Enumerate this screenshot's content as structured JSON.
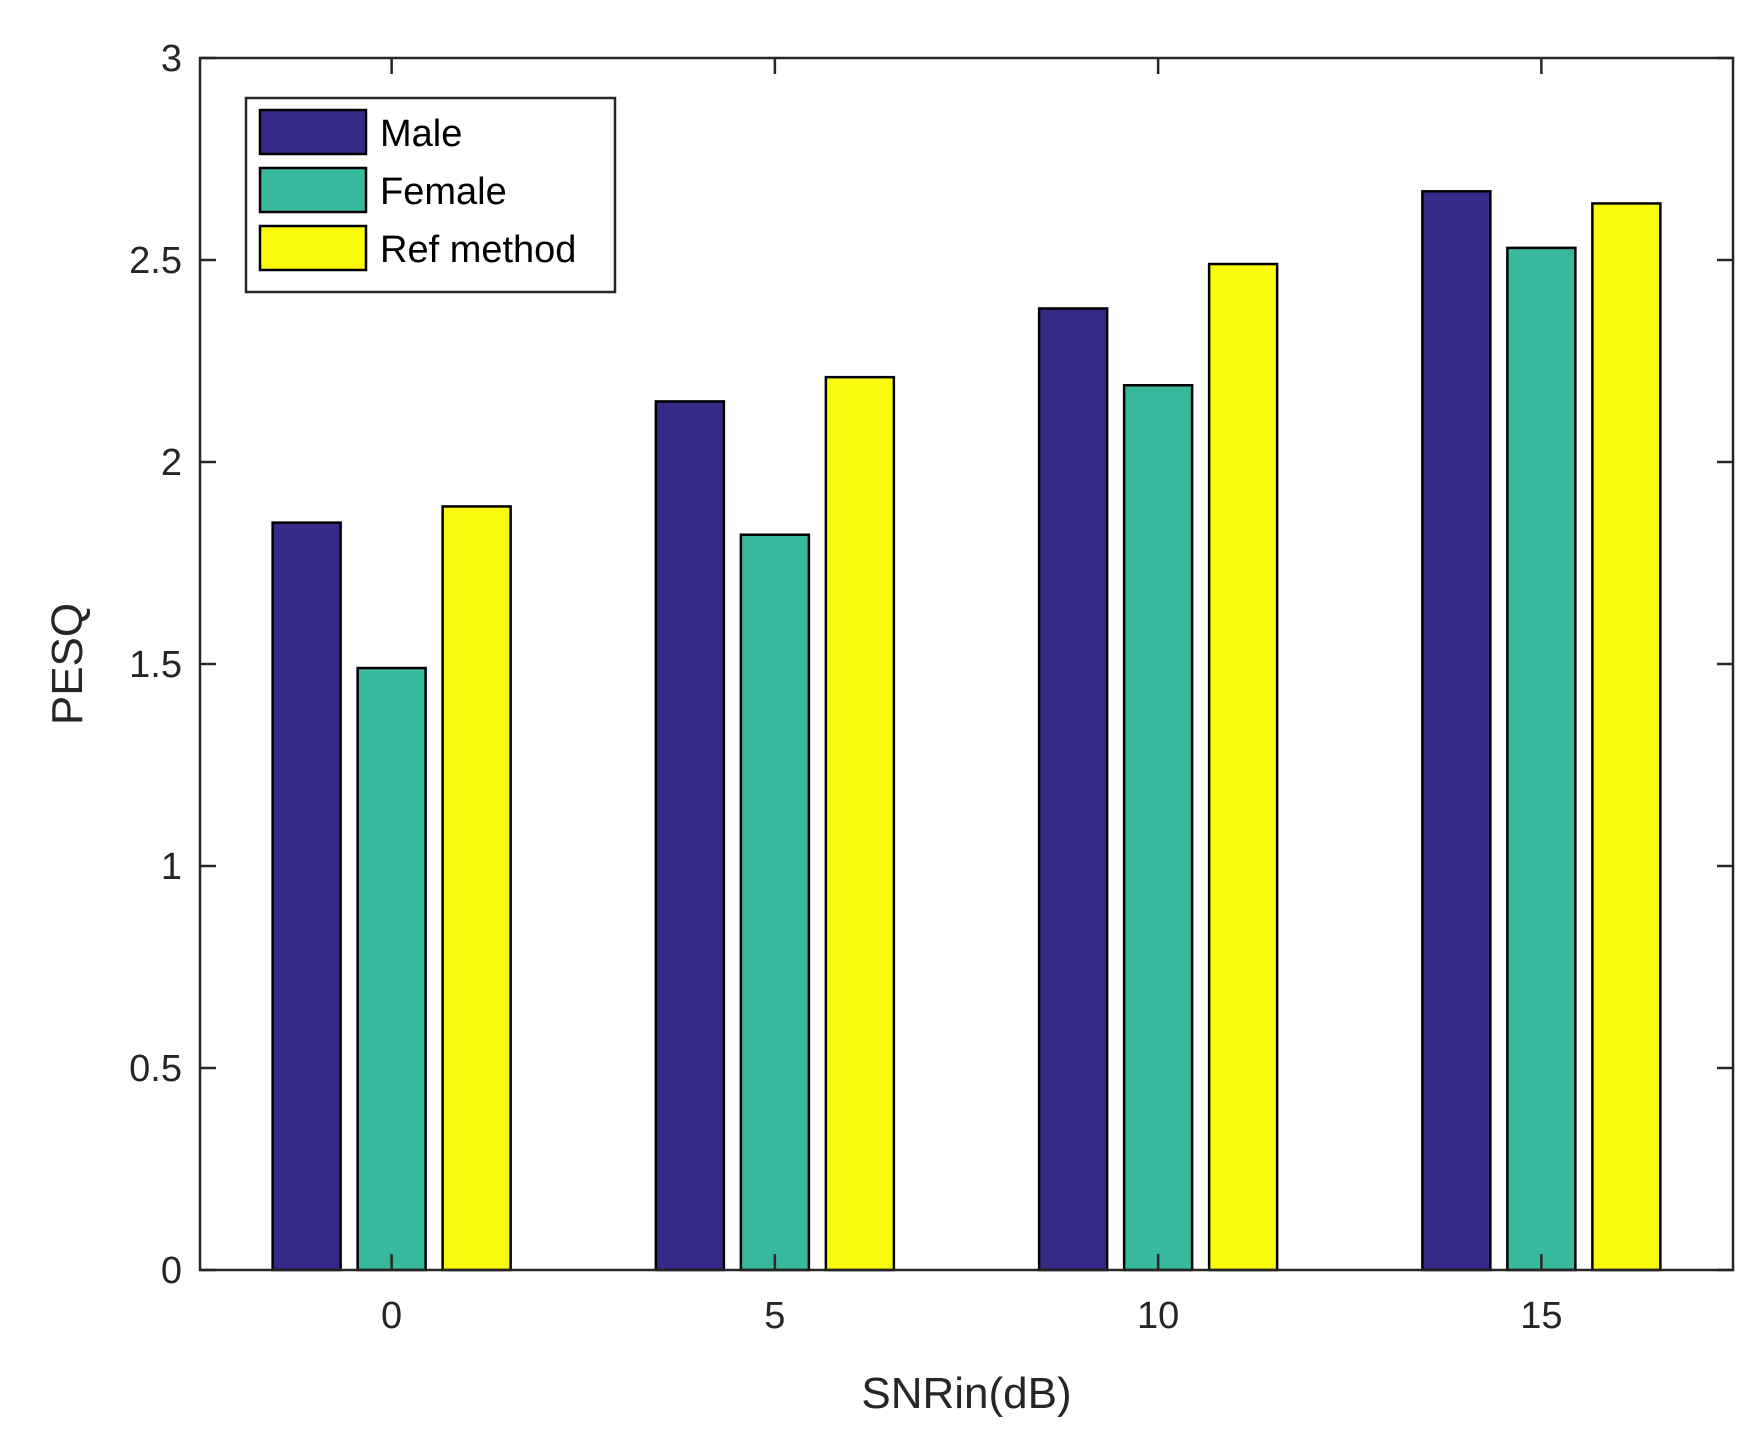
{
  "chart_data": {
    "type": "bar",
    "title": "",
    "xlabel": "SNRin(dB)",
    "ylabel": "PESQ",
    "categories": [
      "0",
      "5",
      "10",
      "15"
    ],
    "ylim": [
      0,
      3
    ],
    "yticks": [
      "0",
      "0.5",
      "1",
      "1.5",
      "2",
      "2.5",
      "3"
    ],
    "series": [
      {
        "name": "Male",
        "color": "#352A87",
        "values": [
          1.85,
          2.15,
          2.38,
          2.67
        ]
      },
      {
        "name": "Female",
        "color": "#38B89C",
        "values": [
          1.49,
          1.82,
          2.19,
          2.53
        ]
      },
      {
        "name": "Ref method",
        "color": "#F9FA0E",
        "values": [
          1.89,
          2.21,
          2.49,
          2.64
        ]
      }
    ],
    "legend": "top-left",
    "grid": false
  }
}
